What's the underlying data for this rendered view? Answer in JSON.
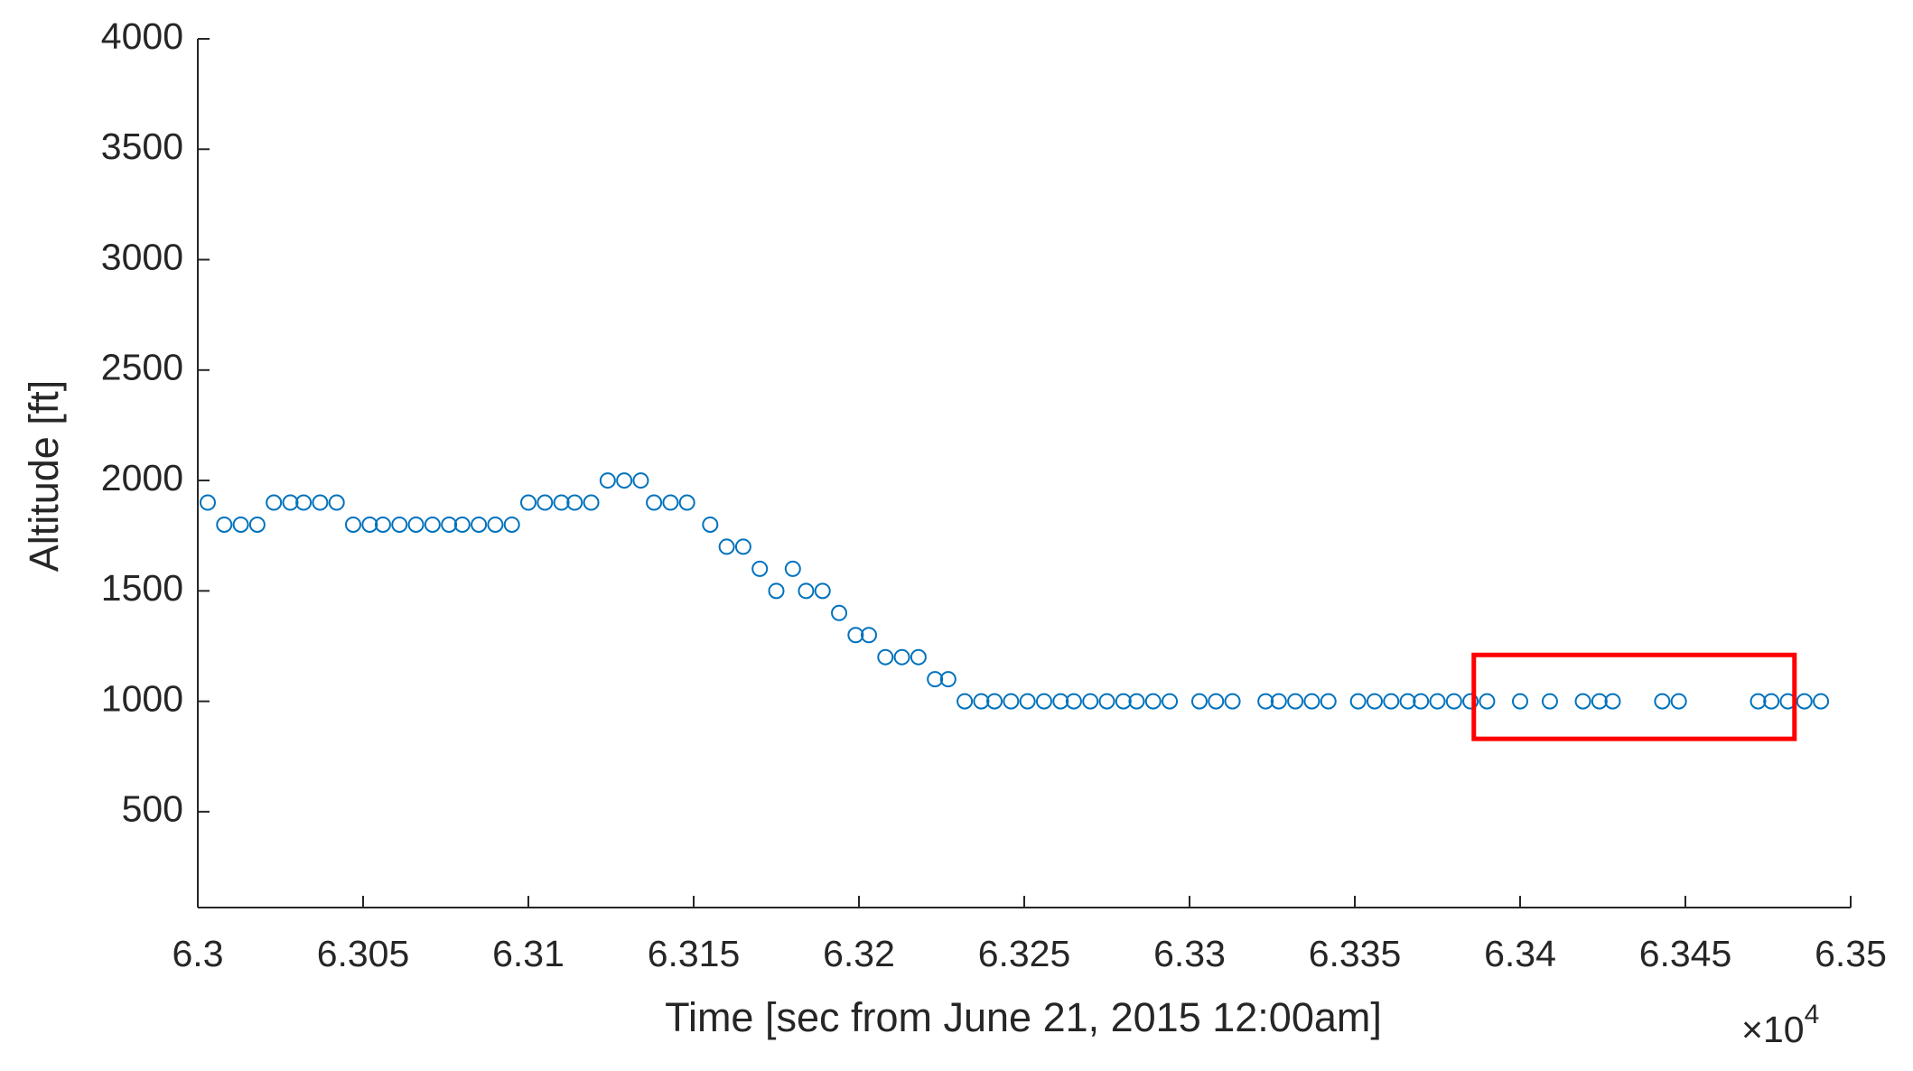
{
  "chart_data": {
    "type": "scatter",
    "x_label": "Time [sec from June 21, 2015 12:00am]",
    "y_label": "Altitude [ft]",
    "x_multiplier": {
      "base": "×10",
      "exponent": "4"
    },
    "color": "#0072bd",
    "xlim": [
      6.3,
      6.35
    ],
    "xticks": [
      6.3,
      6.305,
      6.31,
      6.315,
      6.32,
      6.325,
      6.33,
      6.335,
      6.34,
      6.345,
      6.35
    ],
    "ylim": [
      66,
      4000
    ],
    "yticks": [
      500,
      1000,
      1500,
      2000,
      2500,
      3000,
      3500,
      4000
    ],
    "highlight": {
      "xlim": [
        6.3386,
        6.3483
      ],
      "ylim": [
        830,
        1210
      ],
      "color": "#ff0000"
    },
    "x": [
      6.3003,
      6.3008,
      6.3013,
      6.3018,
      6.3023,
      6.3028,
      6.3032,
      6.3037,
      6.3042,
      6.3047,
      6.3052,
      6.3056,
      6.3061,
      6.3066,
      6.3071,
      6.3076,
      6.308,
      6.3085,
      6.309,
      6.3095,
      6.31,
      6.3105,
      6.311,
      6.3114,
      6.3119,
      6.3124,
      6.3129,
      6.3134,
      6.3138,
      6.3143,
      6.3148,
      6.3155,
      6.316,
      6.3165,
      6.317,
      6.3175,
      6.318,
      6.3184,
      6.3189,
      6.3194,
      6.3199,
      6.3203,
      6.3208,
      6.3213,
      6.3218,
      6.3223,
      6.3227,
      6.3232,
      6.3237,
      6.3241,
      6.3246,
      6.3251,
      6.3256,
      6.3261,
      6.3265,
      6.327,
      6.3275,
      6.328,
      6.3284,
      6.3289,
      6.3294,
      6.3303,
      6.3308,
      6.3313,
      6.3323,
      6.3327,
      6.3332,
      6.3337,
      6.3342,
      6.3351,
      6.3356,
      6.3361,
      6.3366,
      6.337,
      6.3375,
      6.338,
      6.3385,
      6.339,
      6.34,
      6.3409,
      6.3419,
      6.3424,
      6.3428,
      6.3443,
      6.3448,
      6.3472,
      6.3476,
      6.3481,
      6.3486,
      6.3491
    ],
    "values": [
      1900,
      1800,
      1800,
      1800,
      1900,
      1900,
      1900,
      1900,
      1900,
      1800,
      1800,
      1800,
      1800,
      1800,
      1800,
      1800,
      1800,
      1800,
      1800,
      1800,
      1900,
      1900,
      1900,
      1900,
      1900,
      2000,
      2000,
      2000,
      1900,
      1900,
      1900,
      1800,
      1700,
      1700,
      1600,
      1500,
      1600,
      1500,
      1500,
      1400,
      1300,
      1300,
      1200,
      1200,
      1200,
      1100,
      1100,
      1000,
      1000,
      1000,
      1000,
      1000,
      1000,
      1000,
      1000,
      1000,
      1000,
      1000,
      1000,
      1000,
      1000,
      1000,
      1000,
      1000,
      1000,
      1000,
      1000,
      1000,
      1000,
      1000,
      1000,
      1000,
      1000,
      1000,
      1000,
      1000,
      1000,
      1000,
      1000,
      1000,
      1000,
      1000,
      1000,
      1000,
      1000,
      1000,
      1000,
      1000,
      1000,
      1000
    ]
  }
}
